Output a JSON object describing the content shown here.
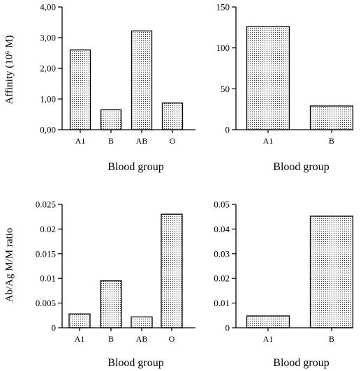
{
  "chart_data": [
    {
      "type": "bar",
      "categories": [
        "A1",
        "B",
        "AB",
        "O"
      ],
      "values": [
        2.6,
        0.65,
        3.22,
        0.87
      ],
      "xlabel": "Blood group",
      "ylabel": "Affinity (10⁶ M)",
      "ylim": [
        0,
        4
      ],
      "yticks": [
        "0,00",
        "1,00",
        "2,00",
        "3,00",
        "4,00"
      ],
      "pattern": "dotted"
    },
    {
      "type": "bar",
      "categories": [
        "A1",
        "B"
      ],
      "values": [
        126,
        29
      ],
      "xlabel": "Blood group",
      "ylabel": "",
      "ylim": [
        0,
        150
      ],
      "yticks": [
        "0",
        "50",
        "100",
        "150"
      ],
      "pattern": "dotted"
    },
    {
      "type": "bar",
      "categories": [
        "A1",
        "B",
        "AB",
        "O"
      ],
      "values": [
        0.0028,
        0.0095,
        0.0022,
        0.023
      ],
      "xlabel": "Blood group",
      "ylabel": "Ab/Ag M/M ratio",
      "ylim": [
        0,
        0.025
      ],
      "yticks": [
        "0",
        "0.005",
        "0.01",
        "0.015",
        "0.02",
        "0.025"
      ],
      "pattern": "dotted"
    },
    {
      "type": "bar",
      "categories": [
        "A1",
        "B"
      ],
      "values": [
        0.0048,
        0.0452
      ],
      "xlabel": "Blood group",
      "ylabel": "",
      "ylim": [
        0,
        0.05
      ],
      "yticks": [
        "0",
        "0.01",
        "0.02",
        "0.03",
        "0.04",
        "0.05"
      ],
      "pattern": "dotted"
    }
  ],
  "colors": {
    "axis": "#000000",
    "bar_fill": "#f2f2f2",
    "dot": "#333333"
  }
}
